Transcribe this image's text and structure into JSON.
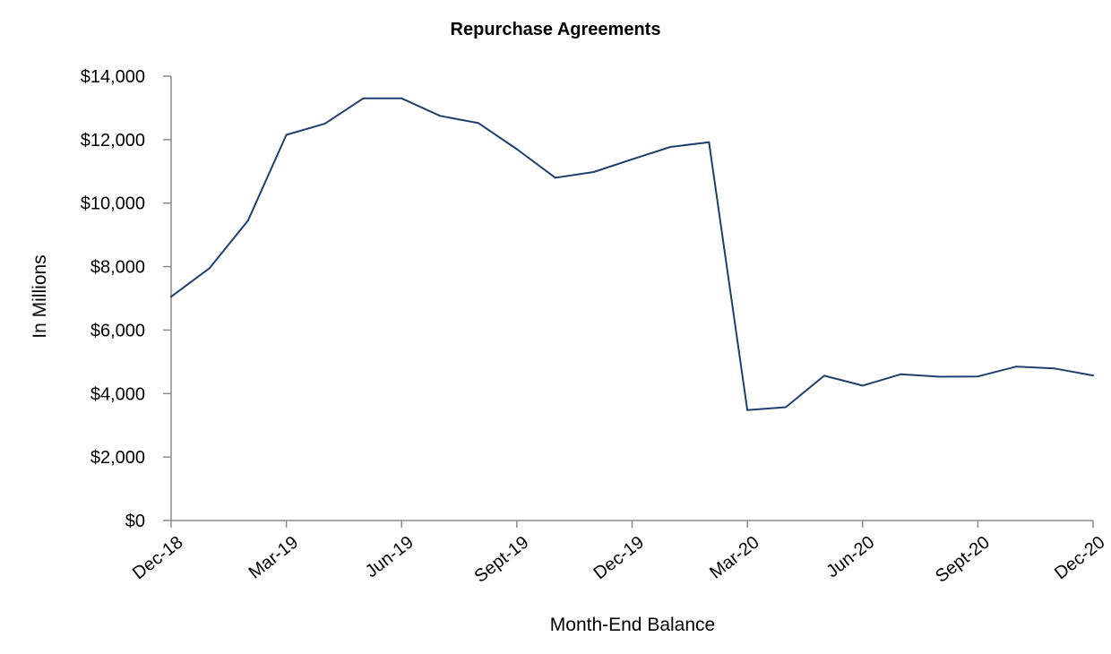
{
  "chart_data": {
    "type": "line",
    "title": "Repurchase Agreements",
    "xlabel": "Month-End Balance",
    "ylabel": "In Millions",
    "ylim": [
      0,
      14000
    ],
    "yticks": [
      0,
      2000,
      4000,
      6000,
      8000,
      10000,
      12000,
      14000
    ],
    "ytick_labels": [
      "$0",
      "$2,000",
      "$4,000",
      "$6,000",
      "$8,000",
      "$10,000",
      "$12,000",
      "$14,000"
    ],
    "x": [
      "Dec-18",
      "Jan-19",
      "Feb-19",
      "Mar-19",
      "Apr-19",
      "May-19",
      "Jun-19",
      "Jul-19",
      "Aug-19",
      "Sept-19",
      "Oct-19",
      "Nov-19",
      "Dec-19",
      "Jan-20",
      "Feb-20",
      "Mar-20",
      "Apr-20",
      "May-20",
      "Jun-20",
      "Jul-20",
      "Aug-20",
      "Sept-20",
      "Oct-20",
      "Nov-20",
      "Dec-20"
    ],
    "xtick_labels": [
      "Dec-18",
      "Mar-19",
      "Jun-19",
      "Sept-19",
      "Dec-19",
      "Mar-20",
      "Jun-20",
      "Sept-20",
      "Dec-20"
    ],
    "xtick_every": 3,
    "series": [
      {
        "color": "#1f3f6e",
        "values": [
          7050,
          7950,
          9450,
          12150,
          12500,
          13300,
          13300,
          12750,
          12520,
          11700,
          10800,
          10980,
          11380,
          11770,
          11920,
          3480,
          3570,
          4560,
          4250,
          4610,
          4530,
          4540,
          4850,
          4790,
          4570
        ]
      }
    ],
    "grid": false,
    "legend": "none"
  }
}
